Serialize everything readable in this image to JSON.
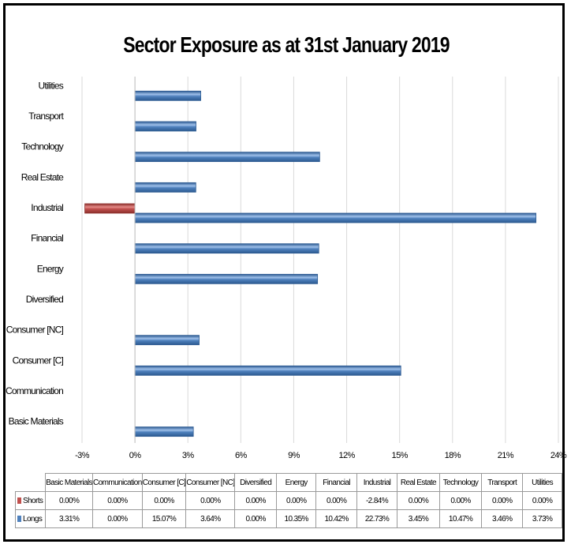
{
  "chart_data": {
    "type": "bar",
    "orientation": "horizontal",
    "title": "Sector Exposure as at 31st January 2019",
    "categories": [
      "Basic Materials",
      "Communication",
      "Consumer [C]",
      "Consumer [NC]",
      "Diversified",
      "Energy",
      "Financial",
      "Industrial",
      "Real Estate",
      "Technology",
      "Transport",
      "Utilities"
    ],
    "series": [
      {
        "name": "Shorts",
        "color": "#c0504d",
        "values": [
          0.0,
          0.0,
          0.0,
          0.0,
          0.0,
          0.0,
          0.0,
          -2.84,
          0.0,
          0.0,
          0.0,
          0.0
        ],
        "labels": [
          "0.00%",
          "0.00%",
          "0.00%",
          "0.00%",
          "0.00%",
          "0.00%",
          "0.00%",
          "-2.84%",
          "0.00%",
          "0.00%",
          "0.00%",
          "0.00%"
        ]
      },
      {
        "name": "Longs",
        "color": "#4f81bd",
        "values": [
          3.31,
          0.0,
          15.07,
          3.64,
          0.0,
          10.35,
          10.42,
          22.73,
          3.45,
          10.47,
          3.46,
          3.73
        ],
        "labels": [
          "3.31%",
          "0.00%",
          "15.07%",
          "3.64%",
          "0.00%",
          "10.35%",
          "10.42%",
          "22.73%",
          "3.45%",
          "10.47%",
          "3.46%",
          "3.73%"
        ]
      }
    ],
    "xlim": [
      -3,
      24
    ],
    "xticks": [
      -3,
      0,
      3,
      6,
      9,
      12,
      15,
      18,
      21,
      24
    ],
    "xtick_labels": [
      "-3%",
      "0%",
      "3%",
      "6%",
      "9%",
      "12%",
      "15%",
      "18%",
      "21%",
      "24%"
    ],
    "grid": "vertical",
    "legend": "data-table"
  }
}
